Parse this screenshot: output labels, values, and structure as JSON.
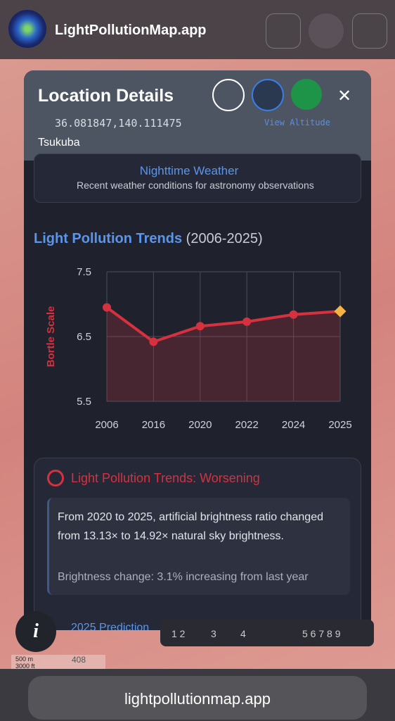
{
  "header": {
    "app_name": "LightPollutionMap.app"
  },
  "location": {
    "title": "Location Details",
    "coordinates": "36.081847,140.111475",
    "view_altitude": "View Altitude",
    "place": "Tsukuba"
  },
  "weather": {
    "title": "Nighttime Weather",
    "subtitle": "Recent weather conditions for astronomy observations"
  },
  "chart_data": {
    "type": "line",
    "title": "Light Pollution Trends",
    "subtitle": "(2006-2025)",
    "y_label": "Bortle Scale",
    "categories": [
      "2006",
      "2016",
      "2020",
      "2022",
      "2024",
      "2025"
    ],
    "values": [
      6.95,
      6.42,
      6.66,
      6.73,
      6.84,
      6.89
    ],
    "color": "#d6313f",
    "highlight_color": "#f5b342",
    "ylim": [
      5.5,
      7.5
    ],
    "yticks": [
      5.5,
      6.5,
      7.5
    ],
    "grid": true
  },
  "trend": {
    "title": "Light Pollution Trends: Worsening",
    "text": "From 2020 to 2025, artificial brightness ratio changed from 13.13× to 14.92× natural sky brightness.",
    "change": "Brightness change: 3.1% increasing from last year",
    "prediction": "2025 Prediction"
  },
  "map": {
    "page_numbers_left": "1 2",
    "page_3": "3",
    "page_4": "4",
    "page_numbers_right": "5 6 7 8 9",
    "scale_m": "500 m",
    "scale_ft": "3000 ft",
    "elevation": "408"
  },
  "browser": {
    "url": "lightpollutionmap.app"
  }
}
